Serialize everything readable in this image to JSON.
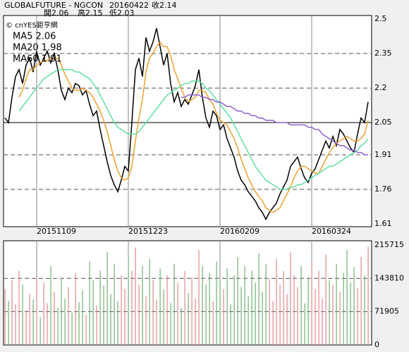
{
  "chart_data": [
    {
      "type": "line",
      "title": "GLOBALFUTURE - NGCON",
      "date": "20160422",
      "close_label": "收2.14",
      "open_label": "開2.06",
      "high_label": "高2.15",
      "low_label": "低2.03",
      "source": "© cnYES鉅亨網",
      "categories": [
        null,
        null,
        null,
        null,
        null,
        null,
        null,
        null,
        null,
        "20151109",
        null,
        null,
        null,
        null,
        null,
        null,
        null,
        null,
        null,
        null,
        null,
        null,
        null,
        null,
        null,
        null,
        null,
        null,
        null,
        null,
        null,
        null,
        null,
        null,
        null,
        "20151223",
        null,
        null,
        null,
        null,
        null,
        null,
        null,
        null,
        null,
        null,
        null,
        null,
        null,
        null,
        null,
        null,
        null,
        null,
        null,
        null,
        null,
        null,
        null,
        null,
        null,
        "20160209",
        null,
        null,
        null,
        null,
        null,
        null,
        null,
        null,
        null,
        null,
        null,
        null,
        null,
        null,
        null,
        null,
        null,
        null,
        null,
        null,
        null,
        null,
        null,
        null,
        null,
        "20160324",
        null,
        null,
        null,
        null,
        null,
        null,
        null,
        null,
        null,
        null,
        null,
        null,
        null,
        null,
        null,
        null
      ],
      "series": [
        {
          "color": "#000000",
          "values": [
            2.07,
            2.05,
            2.16,
            2.25,
            2.28,
            2.22,
            2.3,
            2.33,
            2.27,
            2.36,
            2.3,
            2.33,
            2.36,
            2.31,
            2.35,
            2.28,
            2.19,
            2.15,
            2.2,
            2.18,
            2.22,
            2.21,
            2.17,
            2.19,
            2.13,
            2.08,
            2.1,
            2.02,
            1.95,
            1.88,
            1.82,
            1.78,
            1.75,
            1.8,
            1.86,
            1.84,
            2.05,
            2.28,
            2.33,
            2.25,
            2.42,
            2.36,
            2.4,
            2.46,
            2.38,
            2.3,
            2.35,
            2.22,
            2.14,
            2.18,
            2.12,
            2.15,
            2.13,
            2.17,
            2.21,
            2.28,
            2.16,
            2.07,
            2.03,
            2.1,
            2.08,
            2.02,
            2.04,
            1.98,
            1.94,
            1.9,
            1.84,
            1.8,
            1.78,
            1.75,
            1.73,
            1.71,
            1.68,
            1.66,
            1.63,
            1.66,
            1.68,
            1.7,
            1.74,
            1.77,
            1.8,
            1.86,
            1.88,
            1.9,
            1.85,
            1.81,
            1.79,
            1.83,
            1.85,
            1.89,
            1.93,
            1.97,
            1.94,
            1.99,
            1.95,
            2.02,
            2.0,
            1.97,
            1.94,
            1.92,
            2.0,
            2.07,
            2.05,
            2.14
          ]
        },
        {
          "name": "MA5 2.06",
          "color": "#f0a030",
          "values": [
            null,
            null,
            null,
            null,
            2.16,
            2.19,
            2.24,
            2.28,
            2.28,
            2.3,
            2.31,
            2.32,
            2.32,
            2.33,
            2.33,
            2.33,
            2.3,
            2.26,
            2.23,
            2.2,
            2.19,
            2.19,
            2.2,
            2.19,
            2.18,
            2.16,
            2.13,
            2.1,
            2.06,
            2.01,
            1.95,
            1.89,
            1.84,
            1.81,
            1.8,
            1.81,
            1.86,
            1.97,
            2.07,
            2.15,
            2.27,
            2.33,
            2.35,
            2.38,
            2.4,
            2.38,
            2.38,
            2.34,
            2.28,
            2.24,
            2.2,
            2.16,
            2.14,
            2.15,
            2.16,
            2.19,
            2.19,
            2.18,
            2.15,
            2.13,
            2.09,
            2.06,
            2.05,
            2.04,
            2.01,
            1.98,
            1.94,
            1.89,
            1.85,
            1.81,
            1.78,
            1.75,
            1.73,
            1.71,
            1.68,
            1.67,
            1.66,
            1.67,
            1.68,
            1.71,
            1.74,
            1.77,
            1.81,
            1.84,
            1.86,
            1.86,
            1.85,
            1.84,
            1.83,
            1.83,
            1.86,
            1.89,
            1.92,
            1.94,
            1.96,
            1.97,
            1.98,
            1.99,
            1.98,
            1.97,
            1.97,
            1.98,
            2.0,
            2.06
          ]
        },
        {
          "name": "MA20 1.98",
          "color": "#60e0a0",
          "values": [
            null,
            null,
            null,
            null,
            2.1,
            2.12,
            2.14,
            2.16,
            2.18,
            2.2,
            2.22,
            2.24,
            2.25,
            2.26,
            2.27,
            2.28,
            2.28,
            2.28,
            2.28,
            2.28,
            2.27,
            2.27,
            2.26,
            2.25,
            2.24,
            2.22,
            2.2,
            2.17,
            2.14,
            2.11,
            2.08,
            2.05,
            2.03,
            2.02,
            2.01,
            2.0,
            2.0,
            2.0,
            2.01,
            2.03,
            2.05,
            2.07,
            2.09,
            2.11,
            2.13,
            2.15,
            2.17,
            2.18,
            2.19,
            2.2,
            2.21,
            2.22,
            2.22,
            2.23,
            2.23,
            2.23,
            2.22,
            2.2,
            2.19,
            2.17,
            2.15,
            2.13,
            2.11,
            2.09,
            2.07,
            2.04,
            2.01,
            1.98,
            1.95,
            1.92,
            1.89,
            1.86,
            1.84,
            1.82,
            1.8,
            1.79,
            1.78,
            1.77,
            1.76,
            1.76,
            1.76,
            1.77,
            1.77,
            1.78,
            1.78,
            1.79,
            1.8,
            1.81,
            1.82,
            1.83,
            1.84,
            1.85,
            1.86,
            1.86,
            1.87,
            1.88,
            1.89,
            1.9,
            1.91,
            1.92,
            1.93,
            1.95,
            1.96,
            1.98
          ]
        },
        {
          "name": "MA60 1.91",
          "color": "#9060d0",
          "values": [
            null,
            null,
            null,
            null,
            null,
            null,
            null,
            null,
            null,
            null,
            null,
            null,
            null,
            null,
            null,
            null,
            null,
            null,
            null,
            null,
            null,
            null,
            null,
            null,
            null,
            null,
            null,
            null,
            null,
            null,
            null,
            null,
            null,
            null,
            null,
            null,
            null,
            null,
            null,
            null,
            null,
            null,
            null,
            null,
            null,
            null,
            null,
            null,
            null,
            null,
            2.16,
            2.16,
            2.17,
            2.17,
            2.17,
            2.17,
            2.16,
            2.16,
            2.15,
            2.15,
            2.14,
            2.14,
            2.13,
            2.12,
            2.12,
            2.11,
            2.1,
            2.1,
            2.09,
            2.09,
            2.08,
            2.08,
            2.07,
            2.07,
            2.06,
            2.06,
            2.06,
            2.05,
            2.05,
            2.05,
            2.05,
            2.04,
            2.04,
            2.04,
            2.04,
            2.04,
            2.03,
            2.03,
            2.02,
            2.02,
            2.0,
            1.99,
            1.98,
            1.97,
            1.96,
            1.95,
            1.95,
            1.94,
            1.93,
            1.93,
            1.92,
            1.92,
            1.91,
            1.91
          ]
        }
      ],
      "ylim": [
        1.61,
        2.5
      ],
      "yticks": [
        2.5,
        2.35,
        2.2,
        2.05,
        1.91,
        1.76,
        1.61
      ],
      "reference_line": 2.05,
      "grid": true
    },
    {
      "type": "bar",
      "up_color": "#e08a8a",
      "down_color": "#70b070",
      "values": [
        120000,
        95000,
        140000,
        88000,
        160000,
        130000,
        75000,
        110000,
        98000,
        150000,
        60000,
        135000,
        90000,
        170000,
        115000,
        80000,
        145000,
        100000,
        125000,
        70000,
        155000,
        92000,
        118000,
        65000,
        180000,
        140000,
        85000,
        160000,
        128000,
        200000,
        110000,
        175000,
        95000,
        150000,
        120000,
        190000,
        160000,
        210000,
        130000,
        170000,
        105000,
        185000,
        140000,
        98000,
        165000,
        120000,
        150000,
        90000,
        175000,
        135000,
        80000,
        160000,
        112000,
        145000,
        100000,
        205000,
        170000,
        130000,
        155000,
        95000,
        180000,
        140000,
        120000,
        165000,
        88000,
        150000,
        190000,
        125000,
        170000,
        105000,
        160000,
        135000,
        198000,
        115000,
        175000,
        142000,
        95000,
        185000,
        130000,
        160000,
        110000,
        200000,
        150000,
        125000,
        170000,
        90000,
        145000,
        180000,
        120000,
        160000,
        100000,
        195000,
        140000,
        130000,
        175000,
        115000,
        155000,
        205000,
        135000,
        168000,
        122000,
        190000,
        150000,
        212000
      ],
      "ylim": [
        0,
        215715
      ],
      "yticks": [
        215715,
        143810,
        71905,
        0
      ],
      "grid": true
    }
  ]
}
